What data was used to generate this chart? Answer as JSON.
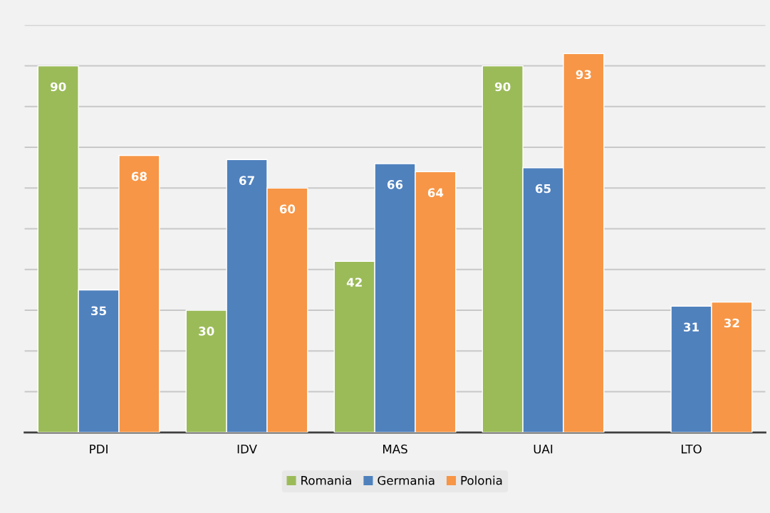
{
  "chart_data": {
    "type": "bar",
    "categories": [
      "PDI",
      "IDV",
      "MAS",
      "UAI",
      "LTO"
    ],
    "series": [
      {
        "name": "Romania",
        "color": "#9bbb59",
        "values": [
          90,
          30,
          42,
          90,
          null
        ]
      },
      {
        "name": "Germania",
        "color": "#4f81bd",
        "values": [
          35,
          67,
          66,
          65,
          31
        ]
      },
      {
        "name": "Polonia",
        "color": "#f79646",
        "values": [
          68,
          60,
          64,
          93,
          32
        ]
      }
    ],
    "ylim": [
      0,
      100
    ],
    "yticks": [
      {
        "value": 0,
        "label": null
      },
      {
        "value": 10,
        "label": null
      },
      {
        "value": 20,
        "label": null
      },
      {
        "value": 30,
        "label": null
      },
      {
        "value": 40,
        "label": null
      },
      {
        "value": 50,
        "label": null
      },
      {
        "value": 60,
        "label": null
      },
      {
        "value": 70,
        "label": null
      },
      {
        "value": 80,
        "label": null
      },
      {
        "value": 90,
        "label": null
      },
      {
        "value": 100,
        "label": null
      }
    ],
    "tick_labels": "x",
    "grid": "y",
    "data_labels": true,
    "legend": "bottom"
  }
}
